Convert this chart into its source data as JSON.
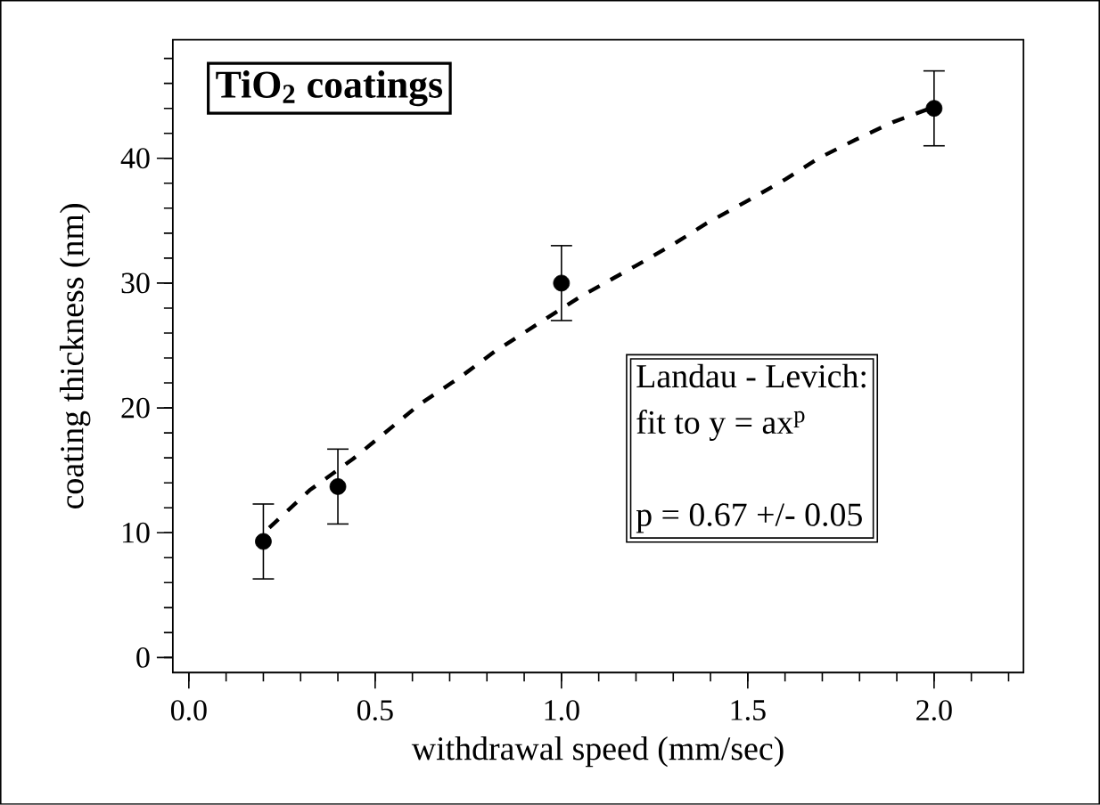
{
  "chart_data": {
    "type": "scatter",
    "xlabel": "withdrawal speed  (mm/sec)",
    "ylabel": "coating thickness (nm)",
    "xlim": [
      -0.043,
      2.24
    ],
    "ylim": [
      -1.2,
      49.5
    ],
    "xticks": [
      {
        "value": 0,
        "label": "0.0"
      },
      {
        "value": 0.5,
        "label": "0.5"
      },
      {
        "value": 1,
        "label": "1.0"
      },
      {
        "value": 1.5,
        "label": "1.5"
      },
      {
        "value": 2,
        "label": "2.0"
      }
    ],
    "yticks": [
      0,
      10,
      20,
      30,
      40
    ],
    "grid": false,
    "annotations": [
      "TiO$_{2}$ coatings",
      "Landau - Levich:",
      "fit to y = ax$^{p}$",
      "p = 0.67 +/- 0.05"
    ],
    "series": [
      {
        "color": "#000000",
        "marker": "circle",
        "x": [
          0.2,
          0.4,
          1.0,
          2.0
        ],
        "values": [
          9.3,
          13.7,
          30,
          44
        ],
        "errors": [
          3,
          3,
          3,
          3
        ]
      },
      {
        "type": "line",
        "color": "#000000",
        "marker": "none",
        "line_style": "dashed",
        "x": [
          0.216,
          0.324,
          0.44,
          0.53,
          0.62,
          0.73,
          0.82,
          0.935,
          1.05,
          1.2,
          1.3,
          1.39,
          1.5,
          1.6,
          1.69,
          1.79,
          1.89,
          1.98
        ],
        "values": [
          10.4,
          13.4,
          15.9,
          18.1,
          20.3,
          22.5,
          24.5,
          26.7,
          28.9,
          31.4,
          33.1,
          34.8,
          36.6,
          38.3,
          40.0,
          41.5,
          42.9,
          43.9
        ]
      }
    ]
  }
}
